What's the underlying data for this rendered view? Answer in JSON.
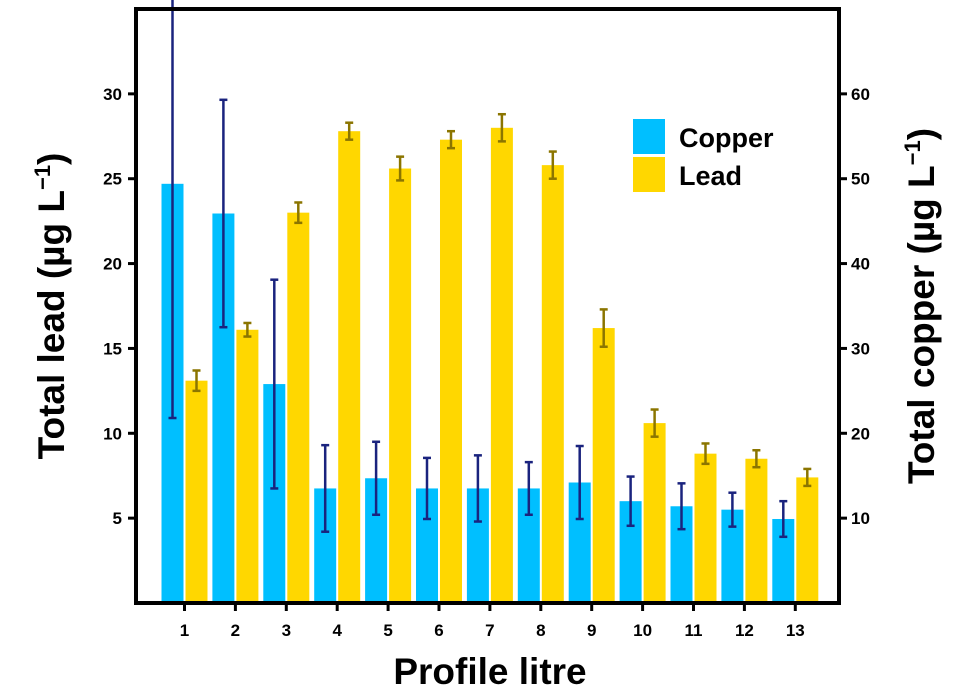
{
  "chart_data": {
    "type": "bar",
    "categories": [
      "1",
      "2",
      "3",
      "4",
      "5",
      "6",
      "7",
      "8",
      "9",
      "10",
      "11",
      "12",
      "13"
    ],
    "xlabel": "Profile litre",
    "ylabel_left_main": "Total lead (µg L",
    "ylabel_left_sup": "−1",
    "ylabel_left_tail": ")",
    "ylabel_right_main": "Total copper (µg L",
    "ylabel_right_sup": "−1",
    "ylabel_right_tail": ")",
    "ylim_left": [
      0,
      35
    ],
    "ylim_right": [
      0,
      70
    ],
    "yticks_left": [
      5,
      10,
      15,
      20,
      25,
      30
    ],
    "yticks_right": [
      10,
      20,
      30,
      40,
      50,
      60
    ],
    "legend_position": "top-right",
    "series": [
      {
        "name": "Copper",
        "axis": "right",
        "color": "#00BFFF",
        "error_color": "#1A237E",
        "values": [
          49.4,
          45.9,
          25.8,
          13.5,
          14.7,
          13.5,
          13.5,
          13.5,
          14.2,
          12.0,
          11.4,
          11.0,
          9.9
        ],
        "errors": [
          27.6,
          13.4,
          12.3,
          5.1,
          4.3,
          3.6,
          3.9,
          3.1,
          4.3,
          2.9,
          2.7,
          2.0,
          2.1
        ]
      },
      {
        "name": "Lead",
        "axis": "left",
        "color": "#FFD700",
        "error_color": "#8B7500",
        "values": [
          13.1,
          16.1,
          23.0,
          27.8,
          25.6,
          27.3,
          28.0,
          25.8,
          16.2,
          10.6,
          8.8,
          8.5,
          7.4
        ],
        "errors": [
          0.6,
          0.4,
          0.6,
          0.5,
          0.7,
          0.5,
          0.8,
          0.8,
          1.1,
          0.8,
          0.6,
          0.5,
          0.5
        ]
      }
    ]
  }
}
